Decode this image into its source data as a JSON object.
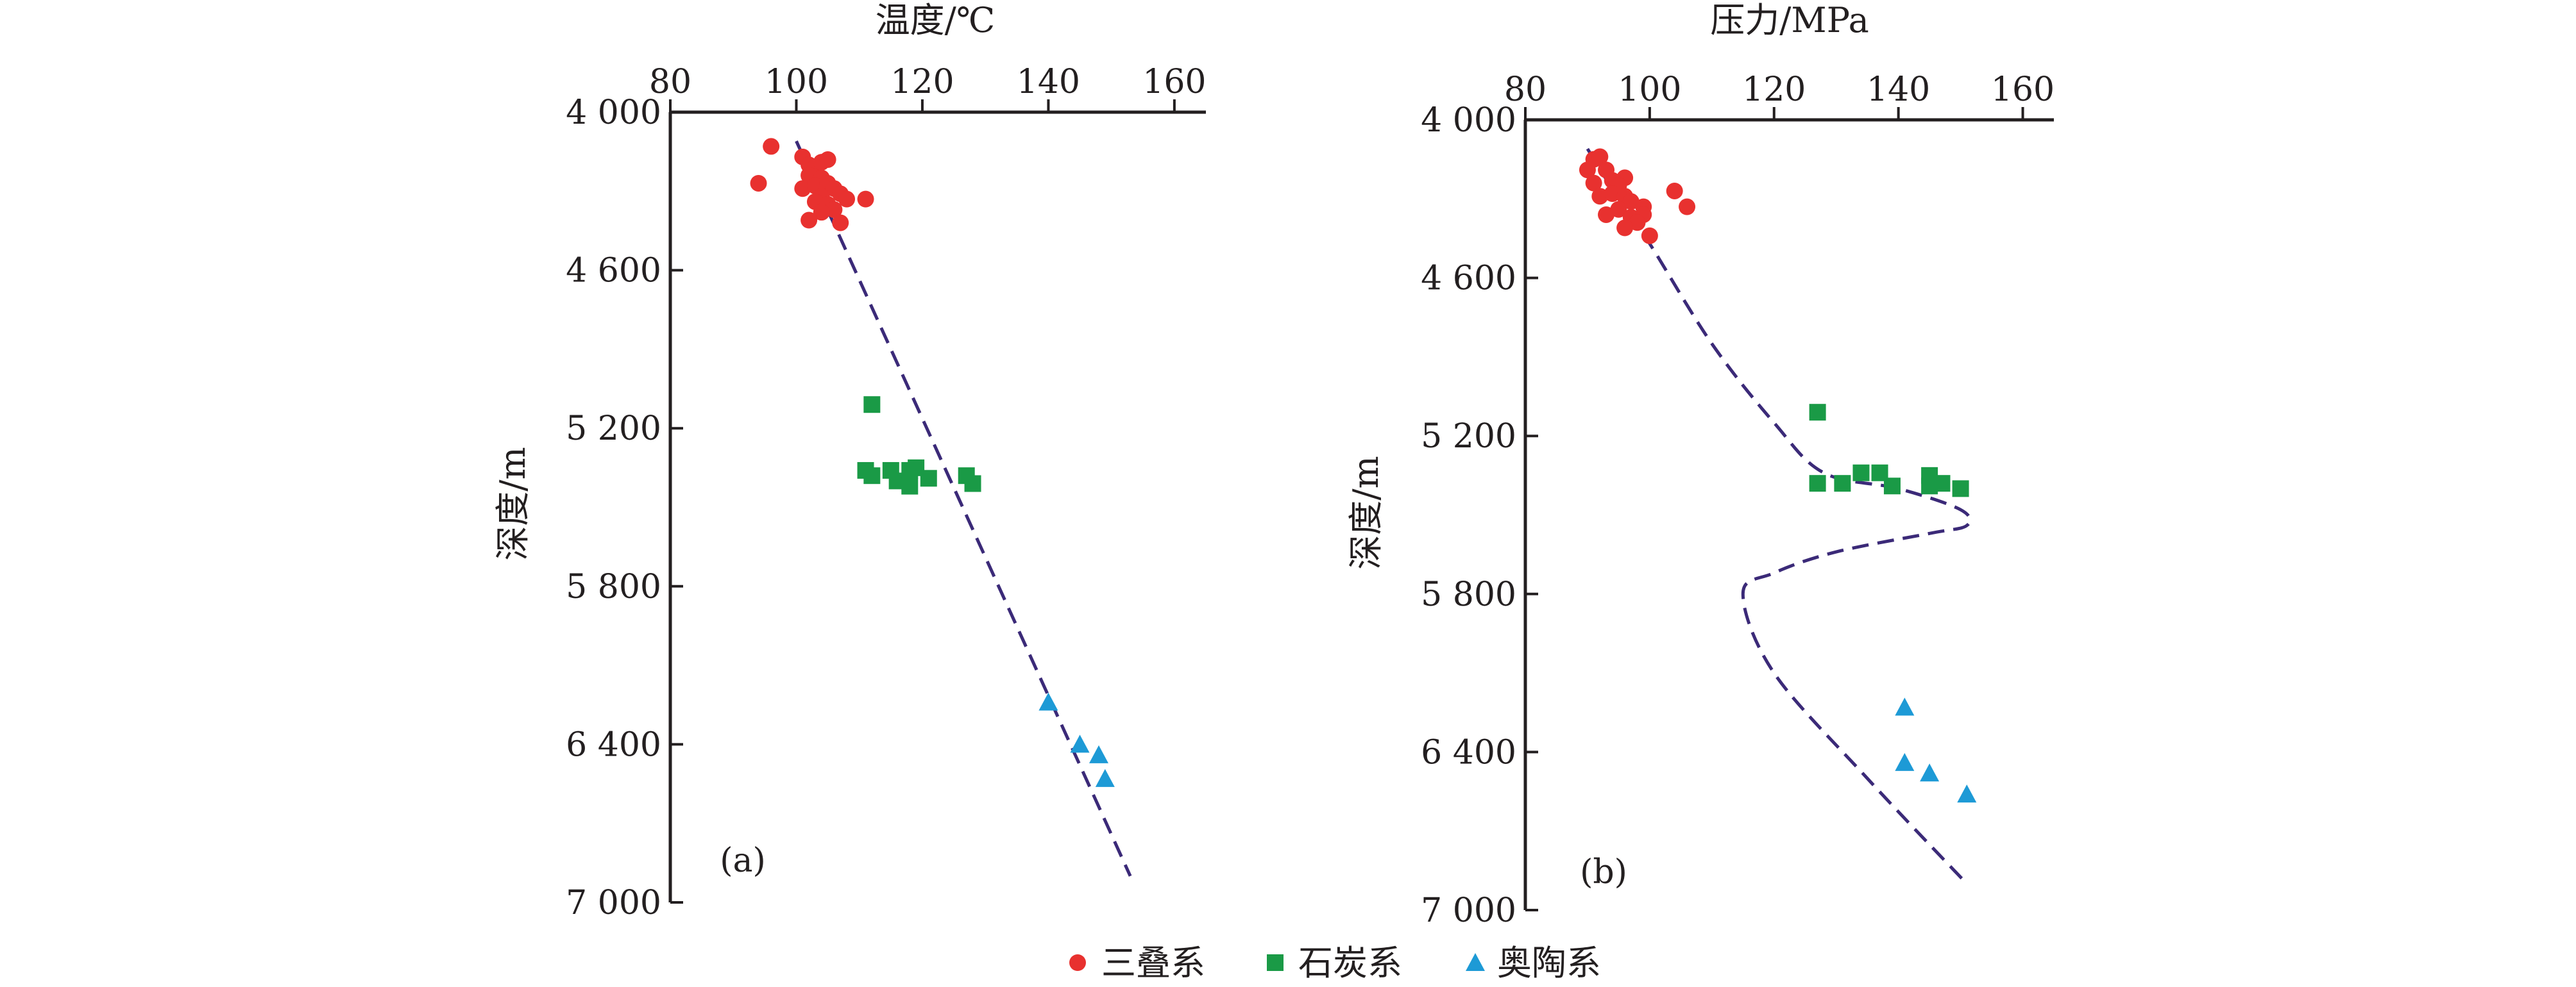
{
  "legend": [
    {
      "label": "三叠系",
      "color": "#e8312f",
      "marker": "circle"
    },
    {
      "label": "石炭系",
      "color": "#1a9a46",
      "marker": "square"
    },
    {
      "label": "奥陶系",
      "color": "#1d9ad6",
      "marker": "triangle"
    }
  ],
  "chart_data": [
    {
      "type": "scatter",
      "panel_label": "(a)",
      "xlabel": "温度/℃",
      "ylabel": "深度/m",
      "xlim": [
        80,
        165
      ],
      "ylim": [
        4000,
        7000
      ],
      "y_inverted": true,
      "x_axis_position": "top",
      "x_ticks": [
        80,
        100,
        120,
        140,
        160
      ],
      "x_tick_labels": [
        "80",
        "100",
        "120",
        "140",
        "160"
      ],
      "y_ticks": [
        4000,
        4600,
        5200,
        5800,
        6400,
        7000
      ],
      "y_tick_labels": [
        "4 000",
        "4 600",
        "5 200",
        "5 800",
        "6 400",
        "7 000"
      ],
      "series": [
        {
          "name": "三叠系",
          "marker": "circle",
          "color": "#e8312f",
          "points": [
            [
              96,
              4130
            ],
            [
              94,
              4270
            ],
            [
              101,
              4170
            ],
            [
              102,
              4200
            ],
            [
              103,
              4210
            ],
            [
              104,
              4190
            ],
            [
              105,
              4180
            ],
            [
              102,
              4240
            ],
            [
              104,
              4250
            ],
            [
              101,
              4290
            ],
            [
              103,
              4280
            ],
            [
              105,
              4270
            ],
            [
              106,
              4290
            ],
            [
              104,
              4320
            ],
            [
              107,
              4310
            ],
            [
              103,
              4340
            ],
            [
              105,
              4350
            ],
            [
              108,
              4330
            ],
            [
              106,
              4370
            ],
            [
              104,
              4380
            ],
            [
              102,
              4410
            ],
            [
              107,
              4420
            ],
            [
              111,
              4330
            ]
          ]
        },
        {
          "name": "石炭系",
          "marker": "square",
          "color": "#1a9a46",
          "points": [
            [
              112,
              5110
            ],
            [
              111,
              5360
            ],
            [
              112,
              5380
            ],
            [
              115,
              5360
            ],
            [
              116,
              5400
            ],
            [
              118,
              5360
            ],
            [
              119,
              5350
            ],
            [
              121,
              5390
            ],
            [
              118,
              5420
            ],
            [
              127,
              5380
            ],
            [
              128,
              5410
            ]
          ]
        },
        {
          "name": "奥陶系",
          "marker": "triangle",
          "color": "#1d9ad6",
          "points": [
            [
              140,
              6240
            ],
            [
              145,
              6400
            ],
            [
              148,
              6440
            ],
            [
              149,
              6530
            ]
          ]
        }
      ],
      "trend": {
        "style": "dashed",
        "color": "#3b2a78",
        "points": [
          [
            100,
            4110
          ],
          [
            153,
            6900
          ]
        ]
      }
    },
    {
      "type": "scatter",
      "panel_label": "(b)",
      "xlabel": "压力/MPa",
      "ylabel": "深度/m",
      "xlim": [
        80,
        165
      ],
      "ylim": [
        4000,
        7000
      ],
      "y_inverted": true,
      "x_axis_position": "top",
      "x_ticks": [
        80,
        100,
        120,
        140,
        160
      ],
      "x_tick_labels": [
        "80",
        "100",
        "120",
        "140",
        "160"
      ],
      "y_ticks": [
        4000,
        4600,
        5200,
        5800,
        6400,
        7000
      ],
      "y_tick_labels": [
        "4 000",
        "4 600",
        "5 200",
        "5 800",
        "6 400",
        "7 000"
      ],
      "series": [
        {
          "name": "三叠系",
          "marker": "circle",
          "color": "#e8312f",
          "points": [
            [
              91,
              4150
            ],
            [
              90,
              4190
            ],
            [
              92,
              4140
            ],
            [
              93,
              4190
            ],
            [
              91,
              4240
            ],
            [
              94,
              4230
            ],
            [
              96,
              4220
            ],
            [
              95,
              4250
            ],
            [
              92,
              4290
            ],
            [
              94,
              4280
            ],
            [
              96,
              4290
            ],
            [
              97,
              4310
            ],
            [
              99,
              4330
            ],
            [
              93,
              4360
            ],
            [
              95,
              4340
            ],
            [
              97,
              4370
            ],
            [
              99,
              4360
            ],
            [
              98,
              4390
            ],
            [
              96,
              4410
            ],
            [
              100,
              4440
            ],
            [
              104,
              4270
            ],
            [
              106,
              4330
            ]
          ]
        },
        {
          "name": "石炭系",
          "marker": "square",
          "color": "#1a9a46",
          "points": [
            [
              127,
              5110
            ],
            [
              127,
              5380
            ],
            [
              131,
              5380
            ],
            [
              134,
              5340
            ],
            [
              137,
              5340
            ],
            [
              139,
              5390
            ],
            [
              145,
              5350
            ],
            [
              145,
              5390
            ],
            [
              147,
              5380
            ],
            [
              150,
              5400
            ]
          ]
        },
        {
          "name": "奥陶系",
          "marker": "triangle",
          "color": "#1d9ad6",
          "points": [
            [
              141,
              6230
            ],
            [
              141,
              6440
            ],
            [
              145,
              6480
            ],
            [
              151,
              6560
            ]
          ]
        }
      ],
      "trend": {
        "style": "dashed",
        "color": "#3b2a78",
        "points": [
          [
            90,
            4110
          ],
          [
            95,
            4300
          ],
          [
            100,
            4470
          ],
          [
            110,
            4850
          ],
          [
            120,
            5150
          ],
          [
            128,
            5340
          ],
          [
            140,
            5400
          ],
          [
            150,
            5480
          ],
          [
            151,
            5540
          ],
          [
            145,
            5570
          ],
          [
            130,
            5640
          ],
          [
            120,
            5720
          ],
          [
            115,
            5800
          ],
          [
            120,
            6100
          ],
          [
            135,
            6500
          ],
          [
            151,
            6900
          ]
        ]
      }
    }
  ]
}
